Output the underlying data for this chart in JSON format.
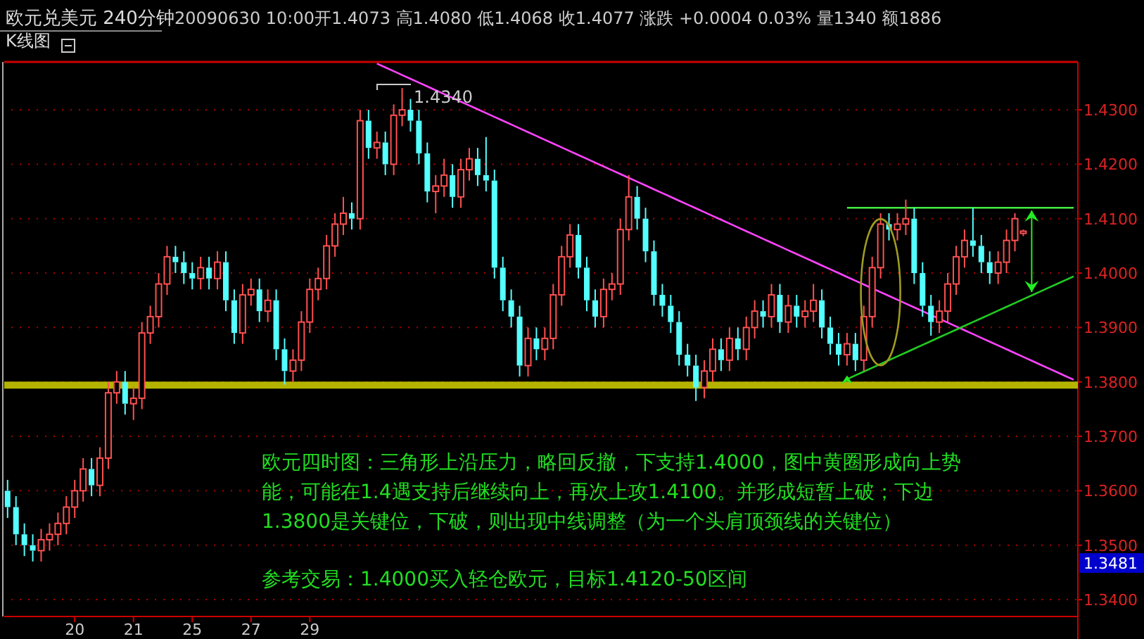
{
  "chart_data": {
    "type": "candlestick",
    "title": "欧元兑美元 240分钟",
    "subtitle": "20090630 10:00开1.4073 高1.4080 低1.4068 收1.4077 涨跌 +0.0004 0.03% 量1340 额1886",
    "categories": [
      null,
      null,
      null,
      null,
      null,
      null,
      null,
      null,
      "20",
      null,
      null,
      null,
      null,
      null,
      null,
      "21",
      null,
      null,
      null,
      null,
      null,
      null,
      "25",
      null,
      null,
      null,
      null,
      null,
      null,
      "27",
      null,
      null,
      null,
      null,
      null,
      null,
      "29",
      null,
      null,
      null,
      null,
      null,
      null,
      null,
      null,
      null,
      null,
      null,
      null,
      null,
      null,
      null,
      null,
      null,
      null,
      null,
      null,
      null,
      null,
      null,
      null,
      null,
      null,
      null,
      null,
      null,
      null,
      null,
      null,
      null,
      null,
      null,
      null,
      null,
      null,
      null,
      null,
      null,
      null,
      null,
      null,
      null,
      null,
      null,
      null,
      null,
      null,
      null,
      null,
      null,
      null,
      null,
      null,
      null,
      null,
      null,
      null,
      null,
      null,
      null,
      null,
      null,
      null,
      null,
      null,
      null,
      null,
      null,
      null,
      null,
      null,
      null,
      null,
      null,
      null,
      null,
      null,
      null,
      null,
      null,
      null,
      null,
      null,
      null,
      null,
      null,
      null,
      null
    ],
    "ohlc": [
      [
        1.36,
        1.362,
        1.355,
        1.357
      ],
      [
        1.357,
        1.359,
        1.35,
        1.352
      ],
      [
        1.352,
        1.354,
        1.348,
        1.35
      ],
      [
        1.35,
        1.352,
        1.347,
        1.349
      ],
      [
        1.349,
        1.353,
        1.347,
        1.351
      ],
      [
        1.351,
        1.354,
        1.349,
        1.352
      ],
      [
        1.352,
        1.356,
        1.35,
        1.354
      ],
      [
        1.354,
        1.359,
        1.352,
        1.357
      ],
      [
        1.357,
        1.362,
        1.355,
        1.36
      ],
      [
        1.36,
        1.366,
        1.358,
        1.364
      ],
      [
        1.364,
        1.366,
        1.359,
        1.361
      ],
      [
        1.361,
        1.368,
        1.359,
        1.366
      ],
      [
        1.366,
        1.38,
        1.364,
        1.378
      ],
      [
        1.378,
        1.382,
        1.376,
        1.38
      ],
      [
        1.38,
        1.382,
        1.374,
        1.376
      ],
      [
        1.376,
        1.379,
        1.373,
        1.377
      ],
      [
        1.377,
        1.391,
        1.375,
        1.389
      ],
      [
        1.389,
        1.394,
        1.387,
        1.392
      ],
      [
        1.392,
        1.4,
        1.39,
        1.398
      ],
      [
        1.398,
        1.405,
        1.396,
        1.403
      ],
      [
        1.403,
        1.405,
        1.4,
        1.402
      ],
      [
        1.402,
        1.404,
        1.398,
        1.4
      ],
      [
        1.4,
        1.402,
        1.397,
        1.399
      ],
      [
        1.399,
        1.403,
        1.397,
        1.401
      ],
      [
        1.401,
        1.403,
        1.397,
        1.399
      ],
      [
        1.399,
        1.404,
        1.397,
        1.402
      ],
      [
        1.402,
        1.404,
        1.393,
        1.395
      ],
      [
        1.395,
        1.397,
        1.387,
        1.389
      ],
      [
        1.389,
        1.398,
        1.387,
        1.396
      ],
      [
        1.396,
        1.399,
        1.394,
        1.397
      ],
      [
        1.397,
        1.399,
        1.391,
        1.393
      ],
      [
        1.393,
        1.397,
        1.391,
        1.395
      ],
      [
        1.395,
        1.397,
        1.384,
        1.386
      ],
      [
        1.386,
        1.388,
        1.3795,
        1.382
      ],
      [
        1.382,
        1.386,
        1.38,
        1.384
      ],
      [
        1.384,
        1.393,
        1.382,
        1.391
      ],
      [
        1.391,
        1.399,
        1.389,
        1.397
      ],
      [
        1.397,
        1.401,
        1.395,
        1.399
      ],
      [
        1.399,
        1.407,
        1.397,
        1.405
      ],
      [
        1.405,
        1.411,
        1.403,
        1.409
      ],
      [
        1.409,
        1.414,
        1.407,
        1.411
      ],
      [
        1.411,
        1.413,
        1.408,
        1.41
      ],
      [
        1.41,
        1.43,
        1.408,
        1.428
      ],
      [
        1.428,
        1.43,
        1.421,
        1.423
      ],
      [
        1.423,
        1.426,
        1.421,
        1.424
      ],
      [
        1.424,
        1.426,
        1.418,
        1.42
      ],
      [
        1.42,
        1.431,
        1.418,
        1.429
      ],
      [
        1.429,
        1.434,
        1.427,
        1.43
      ],
      [
        1.43,
        1.432,
        1.426,
        1.428
      ],
      [
        1.428,
        1.43,
        1.42,
        1.422
      ],
      [
        1.422,
        1.424,
        1.413,
        1.415
      ],
      [
        1.415,
        1.418,
        1.411,
        1.416
      ],
      [
        1.416,
        1.421,
        1.414,
        1.418
      ],
      [
        1.418,
        1.42,
        1.412,
        1.414
      ],
      [
        1.414,
        1.421,
        1.412,
        1.419
      ],
      [
        1.419,
        1.423,
        1.417,
        1.421
      ],
      [
        1.421,
        1.423,
        1.416,
        1.418
      ],
      [
        1.418,
        1.425,
        1.415,
        1.417
      ],
      [
        1.417,
        1.419,
        1.399,
        1.401
      ],
      [
        1.401,
        1.403,
        1.393,
        1.395
      ],
      [
        1.395,
        1.397,
        1.39,
        1.392
      ],
      [
        1.392,
        1.394,
        1.381,
        1.383
      ],
      [
        1.383,
        1.39,
        1.381,
        1.388
      ],
      [
        1.388,
        1.39,
        1.384,
        1.386
      ],
      [
        1.386,
        1.39,
        1.384,
        1.388
      ],
      [
        1.388,
        1.398,
        1.386,
        1.396
      ],
      [
        1.396,
        1.405,
        1.394,
        1.403
      ],
      [
        1.403,
        1.409,
        1.401,
        1.407
      ],
      [
        1.407,
        1.409,
        1.399,
        1.401
      ],
      [
        1.401,
        1.403,
        1.393,
        1.395
      ],
      [
        1.395,
        1.397,
        1.39,
        1.392
      ],
      [
        1.392,
        1.399,
        1.39,
        1.397
      ],
      [
        1.397,
        1.4,
        1.395,
        1.398
      ],
      [
        1.398,
        1.41,
        1.396,
        1.408
      ],
      [
        1.408,
        1.418,
        1.406,
        1.414
      ],
      [
        1.414,
        1.416,
        1.408,
        1.41
      ],
      [
        1.41,
        1.412,
        1.402,
        1.404
      ],
      [
        1.404,
        1.406,
        1.394,
        1.396
      ],
      [
        1.396,
        1.398,
        1.392,
        1.394
      ],
      [
        1.394,
        1.396,
        1.389,
        1.391
      ],
      [
        1.391,
        1.393,
        1.383,
        1.385
      ],
      [
        1.385,
        1.387,
        1.381,
        1.383
      ],
      [
        1.383,
        1.385,
        1.3765,
        1.379
      ],
      [
        1.379,
        1.384,
        1.377,
        1.382
      ],
      [
        1.382,
        1.388,
        1.38,
        1.386
      ],
      [
        1.386,
        1.388,
        1.382,
        1.384
      ],
      [
        1.384,
        1.39,
        1.382,
        1.388
      ],
      [
        1.388,
        1.39,
        1.384,
        1.386
      ],
      [
        1.386,
        1.392,
        1.384,
        1.39
      ],
      [
        1.39,
        1.395,
        1.388,
        1.393
      ],
      [
        1.393,
        1.395,
        1.39,
        1.392
      ],
      [
        1.392,
        1.398,
        1.39,
        1.396
      ],
      [
        1.396,
        1.398,
        1.389,
        1.391
      ],
      [
        1.391,
        1.396,
        1.389,
        1.394
      ],
      [
        1.394,
        1.396,
        1.39,
        1.392
      ],
      [
        1.392,
        1.395,
        1.39,
        1.393
      ],
      [
        1.393,
        1.398,
        1.391,
        1.395
      ],
      [
        1.395,
        1.397,
        1.388,
        1.39
      ],
      [
        1.39,
        1.392,
        1.385,
        1.387
      ],
      [
        1.387,
        1.389,
        1.383,
        1.385
      ],
      [
        1.385,
        1.389,
        1.383,
        1.387
      ],
      [
        1.387,
        1.389,
        1.382,
        1.384
      ],
      [
        1.384,
        1.394,
        1.382,
        1.392
      ],
      [
        1.392,
        1.403,
        1.39,
        1.401
      ],
      [
        1.401,
        1.411,
        1.399,
        1.409
      ],
      [
        1.409,
        1.411,
        1.406,
        1.408
      ],
      [
        1.408,
        1.411,
        1.406,
        1.409
      ],
      [
        1.409,
        1.4135,
        1.407,
        1.41
      ],
      [
        1.41,
        1.412,
        1.398,
        1.4
      ],
      [
        1.4,
        1.402,
        1.392,
        1.394
      ],
      [
        1.394,
        1.396,
        1.3885,
        1.391
      ],
      [
        1.391,
        1.395,
        1.389,
        1.393
      ],
      [
        1.393,
        1.4,
        1.391,
        1.398
      ],
      [
        1.398,
        1.405,
        1.396,
        1.403
      ],
      [
        1.403,
        1.408,
        1.401,
        1.406
      ],
      [
        1.406,
        1.412,
        1.403,
        1.405
      ],
      [
        1.405,
        1.407,
        1.4,
        1.402
      ],
      [
        1.402,
        1.404,
        1.398,
        1.4
      ],
      [
        1.4,
        1.404,
        1.398,
        1.402
      ],
      [
        1.402,
        1.408,
        1.4,
        1.406
      ],
      [
        1.406,
        1.411,
        1.404,
        1.41
      ],
      [
        1.4073,
        1.408,
        1.4068,
        1.4077
      ],
      null,
      null,
      null,
      null,
      null,
      null
    ],
    "series": [
      {
        "type": "line",
        "color": "#ff44ff",
        "values": [
          null,
          null,
          null,
          null,
          null,
          null,
          null,
          null,
          null,
          null,
          null,
          null,
          null,
          null,
          null,
          null,
          null,
          null,
          null,
          null,
          null,
          null,
          null,
          null,
          null,
          null,
          null,
          null,
          null,
          null,
          null,
          null,
          null,
          null,
          null,
          null,
          null,
          null,
          null,
          null,
          null,
          null,
          null,
          null,
          1.4385,
          1.4378,
          1.4371,
          1.4364,
          1.4357,
          1.435,
          1.4343,
          1.4336,
          1.4329,
          1.4322,
          1.4315,
          1.4308,
          1.4301,
          1.4294,
          1.4287,
          1.428,
          1.4273,
          1.4266,
          1.4259,
          1.4252,
          1.4245,
          1.4238,
          1.4231,
          1.4224,
          1.4217,
          1.421,
          1.4203,
          1.4196,
          1.4189,
          1.4182,
          1.4175,
          1.4168,
          1.4161,
          1.4154,
          1.4147,
          1.414,
          1.4133,
          1.4126,
          1.4119,
          1.4112,
          1.4105,
          1.4098,
          1.4091,
          1.4084,
          1.4077,
          1.407,
          1.4063,
          1.4056,
          1.4049,
          1.4042,
          1.4035,
          1.4028,
          1.4021,
          1.4014,
          1.4007,
          1.4,
          1.3993,
          1.3986,
          1.3979,
          1.3972,
          1.3965,
          1.3958,
          1.3951,
          1.3944,
          1.3937,
          1.393,
          1.3923,
          1.3916,
          1.3909,
          1.3902,
          1.3895,
          1.3888,
          1.3881,
          1.3874,
          1.3867,
          1.386,
          1.3853,
          1.3846,
          1.3839,
          1.3832,
          1.3825,
          1.3818,
          1.3811,
          1.3804
        ]
      },
      {
        "type": "line",
        "color": "#22cc22",
        "values": [
          null,
          null,
          null,
          null,
          null,
          null,
          null,
          null,
          null,
          null,
          null,
          null,
          null,
          null,
          null,
          null,
          null,
          null,
          null,
          null,
          null,
          null,
          null,
          null,
          null,
          null,
          null,
          null,
          null,
          null,
          null,
          null,
          null,
          null,
          null,
          null,
          null,
          null,
          null,
          null,
          null,
          null,
          null,
          null,
          null,
          null,
          null,
          null,
          null,
          null,
          null,
          null,
          null,
          null,
          null,
          null,
          null,
          null,
          null,
          null,
          null,
          null,
          null,
          null,
          null,
          null,
          null,
          null,
          null,
          null,
          null,
          null,
          null,
          null,
          null,
          null,
          null,
          null,
          null,
          null,
          null,
          null,
          null,
          null,
          null,
          null,
          null,
          null,
          null,
          null,
          null,
          null,
          null,
          null,
          null,
          null,
          null,
          null,
          null,
          null,
          1.3805,
          1.3812,
          1.3819,
          1.3826,
          1.3833,
          1.384,
          1.3847,
          1.3854,
          1.3861,
          1.3868,
          1.3875,
          1.3882,
          1.3889,
          1.3896,
          1.3903,
          1.391,
          1.3917,
          1.3924,
          1.3931,
          1.3938,
          1.3945,
          1.3952,
          1.3959,
          1.3966,
          1.3973,
          1.398,
          1.3987,
          1.3994
        ]
      },
      {
        "type": "line",
        "color": "#44ee44",
        "values": [
          null,
          null,
          null,
          null,
          null,
          null,
          null,
          null,
          null,
          null,
          null,
          null,
          null,
          null,
          null,
          null,
          null,
          null,
          null,
          null,
          null,
          null,
          null,
          null,
          null,
          null,
          null,
          null,
          null,
          null,
          null,
          null,
          null,
          null,
          null,
          null,
          null,
          null,
          null,
          null,
          null,
          null,
          null,
          null,
          null,
          null,
          null,
          null,
          null,
          null,
          null,
          null,
          null,
          null,
          null,
          null,
          null,
          null,
          null,
          null,
          null,
          null,
          null,
          null,
          null,
          null,
          null,
          null,
          null,
          null,
          null,
          null,
          null,
          null,
          null,
          null,
          null,
          null,
          null,
          null,
          null,
          null,
          null,
          null,
          null,
          null,
          null,
          null,
          null,
          null,
          null,
          null,
          null,
          null,
          null,
          null,
          null,
          null,
          null,
          null,
          1.412,
          1.412,
          1.412,
          1.412,
          1.412,
          1.412,
          1.412,
          1.412,
          1.412,
          1.412,
          1.412,
          1.412,
          1.412,
          1.412,
          1.412,
          1.412,
          1.412,
          1.412,
          1.412,
          1.412,
          1.412,
          1.412,
          1.412,
          1.412,
          1.412,
          1.412,
          1.412,
          1.412
        ]
      }
    ],
    "ref_lines": [
      {
        "axis": "y",
        "value": 1.3794,
        "color": "#b4b400"
      }
    ],
    "ylim": [
      1.3369,
      1.4388
    ],
    "yticks": [
      {
        "value": 1.34,
        "label": "1.3400"
      },
      {
        "value": 1.35,
        "label": "1.3500"
      },
      {
        "value": 1.36,
        "label": "1.3600"
      },
      {
        "value": 1.37,
        "label": "1.3700"
      },
      {
        "value": 1.38,
        "label": "1.3800"
      },
      {
        "value": 1.39,
        "label": "1.3900"
      },
      {
        "value": 1.4,
        "label": "1.4000"
      },
      {
        "value": 1.41,
        "label": "1.4100"
      },
      {
        "value": 1.42,
        "label": "1.4200"
      },
      {
        "value": 1.43,
        "label": "1.4300"
      }
    ],
    "grid": "y",
    "annotations": [
      "K线图",
      "欧元四时图：三角形上沿压力，略回反撤，下支持1.4000，图中黄圈形成向上势",
      "能，可能在1.4遇支持后继续向上，再次上攻1.4100。并形成短暂上破；下边",
      "1.3800是关键位，下破，则出现中线调整（为一个头肩顶颈线的关键位）",
      "参考交易：1.4000买入轻仓欧元，目标1.4120-50区间",
      "1.3481",
      "1.4340"
    ]
  }
}
